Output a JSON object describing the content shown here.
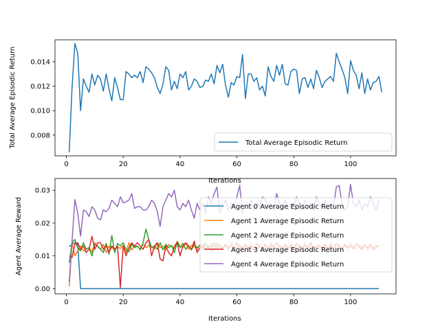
{
  "chart_data": [
    {
      "type": "line",
      "title": "",
      "xlabel": "Iterations",
      "ylabel": "Total Average Episodic Return",
      "xlim": [
        -4,
        116
      ],
      "ylim": [
        0.0063,
        0.0158
      ],
      "xticks": [
        0,
        20,
        40,
        60,
        80,
        100
      ],
      "xtick_labels": [
        "0",
        "20",
        "40",
        "60",
        "80",
        "100"
      ],
      "yticks": [
        0.008,
        0.01,
        0.012,
        0.014
      ],
      "ytick_labels": [
        "0.008",
        "0.010",
        "0.012",
        "0.014"
      ],
      "legend_position": "lower-right",
      "grid": false,
      "series": [
        {
          "name": "Total Average Episodic Return",
          "color": "#1f77b4",
          "x_start": 1,
          "values": [
            0.0066,
            0.0119,
            0.0155,
            0.0147,
            0.01,
            0.0126,
            0.012,
            0.0115,
            0.013,
            0.0121,
            0.0129,
            0.0126,
            0.0116,
            0.013,
            0.0118,
            0.0108,
            0.0127,
            0.0119,
            0.0109,
            0.0109,
            0.0132,
            0.013,
            0.0127,
            0.0129,
            0.0127,
            0.0132,
            0.0123,
            0.0136,
            0.0134,
            0.0131,
            0.0127,
            0.0119,
            0.0114,
            0.0122,
            0.0136,
            0.0133,
            0.0117,
            0.0124,
            0.0118,
            0.013,
            0.0127,
            0.0132,
            0.0117,
            0.012,
            0.0126,
            0.0124,
            0.0119,
            0.012,
            0.0125,
            0.0124,
            0.013,
            0.0122,
            0.0137,
            0.0131,
            0.0138,
            0.0121,
            0.0111,
            0.0123,
            0.0121,
            0.0128,
            0.0127,
            0.0146,
            0.011,
            0.013,
            0.013,
            0.0124,
            0.0127,
            0.0117,
            0.012,
            0.0112,
            0.0136,
            0.0128,
            0.0124,
            0.0137,
            0.0129,
            0.0138,
            0.0122,
            0.0121,
            0.0132,
            0.0134,
            0.0133,
            0.0114,
            0.0126,
            0.0127,
            0.0119,
            0.0126,
            0.0118,
            0.0133,
            0.0127,
            0.0119,
            0.0124,
            0.0126,
            0.0128,
            0.0124,
            0.0147,
            0.014,
            0.0134,
            0.0127,
            0.0114,
            0.0141,
            0.0133,
            0.0129,
            0.0118,
            0.0131,
            0.0114,
            0.0126,
            0.0117,
            0.0123,
            0.0124,
            0.0128,
            0.0115
          ]
        }
      ]
    },
    {
      "type": "line",
      "title": "",
      "xlabel": "Iterations",
      "ylabel": "Agent Average Reward",
      "xlim": [
        -4,
        116
      ],
      "ylim": [
        -0.0016,
        0.0336
      ],
      "xticks": [
        0,
        20,
        40,
        60,
        80,
        100
      ],
      "xtick_labels": [
        "0",
        "20",
        "40",
        "60",
        "80",
        "100"
      ],
      "yticks": [
        0.0,
        0.01,
        0.02,
        0.03
      ],
      "ytick_labels": [
        "0.00",
        "0.01",
        "0.02",
        "0.03"
      ],
      "legend_position": "right",
      "grid": false,
      "series": [
        {
          "name": "Agent 0 Average Episodic Return",
          "color": "#1f77b4",
          "x_start": 1,
          "values": [
            0.0128,
            0.0135,
            0.014,
            0.0135,
            0.0,
            0.0,
            0.0,
            0.0,
            0.0,
            0.0,
            0.0,
            0.0,
            0.0,
            0.0,
            0.0,
            0.0,
            0.0,
            0.0,
            0.0,
            0.0,
            0.0,
            0.0,
            0.0,
            0.0,
            0.0,
            0.0,
            0.0,
            0.0,
            0.0,
            0.0,
            0.0,
            0.0,
            0.0,
            0.0,
            0.0,
            0.0,
            0.0,
            0.0,
            0.0,
            0.0,
            0.0,
            0.0,
            0.0,
            0.0,
            0.0,
            0.0,
            0.0,
            0.0,
            0.0,
            0.0,
            0.0,
            0.0,
            0.0,
            0.0,
            0.0,
            0.0,
            0.0,
            0.0,
            0.0,
            0.0,
            0.0,
            0.0,
            0.0,
            0.0,
            0.0,
            0.0,
            0.0,
            0.0,
            0.0,
            0.0,
            0.0,
            0.0,
            0.0,
            0.0,
            0.0,
            0.0,
            0.0,
            0.0,
            0.0,
            0.0,
            0.0,
            0.0,
            0.0,
            0.0,
            0.0,
            0.0,
            0.0,
            0.0,
            0.0,
            0.0,
            0.0,
            0.0,
            0.0,
            0.0,
            0.0,
            0.0,
            0.0,
            0.0,
            0.0,
            0.0,
            0.0,
            0.0,
            0.0,
            0.0,
            0.0,
            0.0,
            0.0,
            0.0,
            0.0,
            0.0
          ]
        },
        {
          "name": "Agent 1 Average Episodic Return",
          "color": "#ff7f0e",
          "x_start": 1,
          "values": [
            0.0006,
            0.014,
            0.01,
            0.0115,
            0.013,
            0.0115,
            0.012,
            0.0125,
            0.0112,
            0.014,
            0.0128,
            0.012,
            0.0135,
            0.011,
            0.013,
            0.0125,
            0.0118,
            0.0128,
            0.0122,
            0.0132,
            0.011,
            0.014,
            0.0118,
            0.013,
            0.0128,
            0.0122,
            0.0135,
            0.0125,
            0.0132,
            0.0128,
            0.012,
            0.014,
            0.0125,
            0.013,
            0.0118,
            0.0135,
            0.0128,
            0.0122,
            0.0145,
            0.013,
            0.0125,
            0.0138,
            0.012,
            0.0132,
            0.0128,
            0.0118,
            0.0135,
            0.0125,
            0.013,
            0.0122,
            0.0138,
            0.0128,
            0.012,
            0.0135,
            0.0125,
            0.0132,
            0.0118,
            0.014,
            0.0128,
            0.0122,
            0.0135,
            0.0125,
            0.013,
            0.012,
            0.0138,
            0.0128,
            0.0122,
            0.0135,
            0.0118,
            0.0132,
            0.0125,
            0.014,
            0.0128,
            0.012,
            0.0135,
            0.0125,
            0.013,
            0.0118,
            0.0138,
            0.0128,
            0.0122,
            0.0132,
            0.0125,
            0.014,
            0.012,
            0.013,
            0.0128,
            0.0122,
            0.0135,
            0.0125,
            0.0132,
            0.0118,
            0.0138,
            0.0128,
            0.012,
            0.0135,
            0.0125,
            0.013,
            0.0122,
            0.0138,
            0.0128,
            0.012,
            0.0132,
            0.0125,
            0.0135,
            0.0118,
            0.013,
            0.0128,
            0.0122,
            0.0135
          ]
        },
        {
          "name": "Agent 2 Average Episodic Return",
          "color": "#2ca02c",
          "x_start": 1,
          "values": [
            0.0078,
            0.014,
            0.015,
            0.0125,
            0.0115,
            0.014,
            0.012,
            0.0125,
            0.01,
            0.0135,
            0.013,
            0.012,
            0.011,
            0.0138,
            0.0105,
            0.0162,
            0.011,
            0.0138,
            0.013,
            0.014,
            0.012,
            0.0112,
            0.0135,
            0.0125,
            0.013,
            0.0118,
            0.014,
            0.0182,
            0.015,
            0.0125,
            0.013,
            0.012,
            0.014,
            0.0118,
            0.0135,
            0.0125,
            0.0132,
            0.011,
            0.0142,
            0.0125,
            0.0138,
            0.012,
            0.013,
            0.0118,
            0.0135,
            0.0125,
            0.0132,
            0.012,
            0.014,
            0.0125,
            0.013,
            0.0118,
            0.0138,
            0.0128,
            0.0122,
            0.0135,
            0.0125,
            0.0132,
            0.0118,
            0.014,
            0.0128,
            0.0122,
            0.0135,
            0.0125,
            0.013,
            0.012,
            0.0138,
            0.0128,
            0.0122,
            0.0135,
            0.0118,
            0.0132,
            0.0125,
            0.014,
            0.0128,
            0.012,
            0.0135,
            0.0125,
            0.013,
            0.0118,
            0.0138,
            0.0128,
            0.0122,
            0.0132,
            0.0125,
            0.014,
            0.012,
            0.013,
            0.0128,
            0.0122,
            0.0135,
            0.0125,
            0.0132,
            0.0118,
            0.0138,
            0.0128,
            0.012,
            0.0135,
            0.0125,
            0.013,
            0.0122,
            0.0138,
            0.0128,
            0.012,
            0.0132,
            0.0125,
            0.0135,
            0.0118,
            0.013,
            0.0128
          ]
        },
        {
          "name": "Agent 3 Average Episodic Return",
          "color": "#d62728",
          "x_start": 1,
          "values": [
            0.01,
            0.0095,
            0.0135,
            0.014,
            0.012,
            0.013,
            0.011,
            0.012,
            0.016,
            0.012,
            0.014,
            0.014,
            0.012,
            0.013,
            0.011,
            0.013,
            0.012,
            0.013,
            0.0003,
            0.013,
            0.01,
            0.0125,
            0.014,
            0.013,
            0.014,
            0.013,
            0.012,
            0.014,
            0.015,
            0.01,
            0.013,
            0.014,
            0.009,
            0.0085,
            0.013,
            0.011,
            0.01,
            0.013,
            0.014,
            0.01,
            0.013,
            0.014,
            0.013,
            0.012,
            0.0145,
            0.011,
            0.0125,
            0.0135,
            0.012,
            0.013,
            0.0115,
            0.014,
            0.0125,
            0.013,
            0.0118,
            0.0135,
            0.0125,
            0.0132,
            0.012,
            0.014,
            0.0128,
            0.0122,
            0.0135,
            0.0125,
            0.013,
            0.0118,
            0.0138,
            0.0128,
            0.0122,
            0.0135,
            0.0118,
            0.0132,
            0.0125,
            0.014,
            0.0128,
            0.012,
            0.0135,
            0.0125,
            0.013,
            0.0118,
            0.0138,
            0.0128,
            0.0122,
            0.0132,
            0.0125,
            0.014,
            0.012,
            0.013,
            0.0128,
            0.0122,
            0.0135,
            0.0125,
            0.0132,
            0.0118,
            0.0138,
            0.0128,
            0.012,
            0.0135,
            0.0125,
            0.013,
            0.0122,
            0.0138,
            0.0128,
            0.012,
            0.0132,
            0.0125,
            0.0135,
            0.0118,
            0.013,
            0.0128
          ]
        },
        {
          "name": "Agent 4 Average Episodic Return",
          "color": "#9467bd",
          "x_start": 1,
          "values": [
            0.002,
            0.0145,
            0.0272,
            0.023,
            0.016,
            0.024,
            0.0235,
            0.022,
            0.025,
            0.024,
            0.0215,
            0.021,
            0.024,
            0.0235,
            0.0245,
            0.027,
            0.026,
            0.025,
            0.028,
            0.0262,
            0.0265,
            0.027,
            0.029,
            0.0245,
            0.025,
            0.025,
            0.024,
            0.024,
            0.025,
            0.027,
            0.026,
            0.0235,
            0.019,
            0.025,
            0.027,
            0.029,
            0.028,
            0.03,
            0.025,
            0.024,
            0.026,
            0.025,
            0.027,
            0.024,
            0.0215,
            0.026,
            0.024,
            0.026,
            0.023,
            0.028,
            0.026,
            0.029,
            0.031,
            0.023,
            0.025,
            0.027,
            0.024,
            0.026,
            0.025,
            0.028,
            0.0315,
            0.023,
            0.026,
            0.025,
            0.027,
            0.024,
            0.026,
            0.025,
            0.028,
            0.027,
            0.025,
            0.026,
            0.024,
            0.029,
            0.026,
            0.025,
            0.027,
            0.024,
            0.026,
            0.025,
            0.028,
            0.026,
            0.024,
            0.027,
            0.025,
            0.026,
            0.024,
            0.028,
            0.026,
            0.025,
            0.027,
            0.024,
            0.026,
            0.025,
            0.031,
            0.0315,
            0.026,
            0.024,
            0.025,
            0.0318,
            0.026,
            0.025,
            0.027,
            0.024,
            0.026,
            0.025,
            0.028,
            0.026,
            0.024,
            0.027
          ]
        }
      ]
    }
  ]
}
